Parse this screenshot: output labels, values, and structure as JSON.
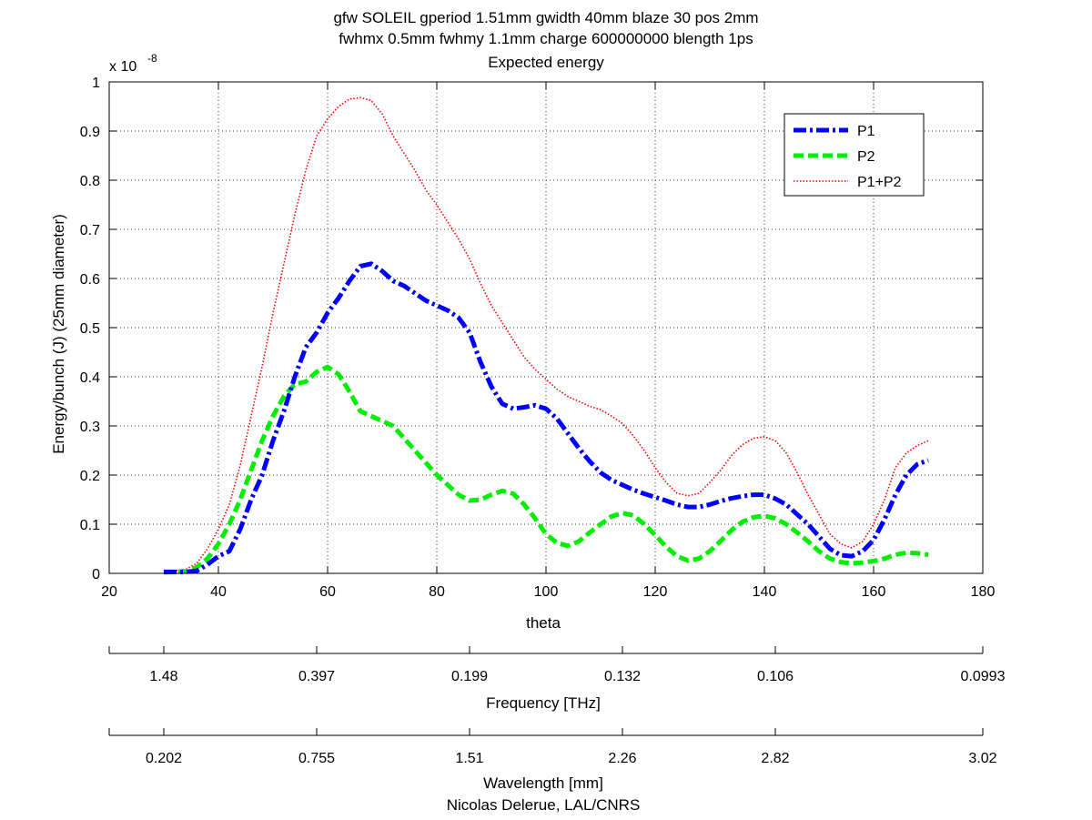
{
  "chart_data": {
    "type": "line",
    "title_lines": [
      "gfw SOLEIL gperiod 1.51mm gwidth 40mm blaze 30 pos 2mm",
      "fwhmx 0.5mm fwhmy 1.1mm charge 600000000 blength 1ps",
      "Expected energy"
    ],
    "xlabel": "theta",
    "ylabel": "Energy/bunch (J) (25mm diameter)",
    "y_multiplier_base": "x 10",
    "y_multiplier_exp": "-8",
    "xlim": [
      20,
      180
    ],
    "ylim": [
      0,
      1
    ],
    "grid": true,
    "legend_position": "top-right",
    "x_ticks": [
      "20",
      "40",
      "60",
      "80",
      "100",
      "120",
      "140",
      "160",
      "180"
    ],
    "y_ticks": [
      "0",
      "0.1",
      "0.2",
      "0.3",
      "0.4",
      "0.5",
      "0.6",
      "0.7",
      "0.8",
      "0.9",
      "1"
    ],
    "series": [
      {
        "name": "P1",
        "color": "#0000ff",
        "style": "dashdot",
        "points": [
          [
            30,
            0.003
          ],
          [
            34,
            0.003
          ],
          [
            36,
            0.005
          ],
          [
            38,
            0.018
          ],
          [
            40,
            0.035
          ],
          [
            42,
            0.045
          ],
          [
            44,
            0.09
          ],
          [
            46,
            0.15
          ],
          [
            48,
            0.2
          ],
          [
            50,
            0.27
          ],
          [
            52,
            0.33
          ],
          [
            54,
            0.4
          ],
          [
            56,
            0.46
          ],
          [
            58,
            0.49
          ],
          [
            60,
            0.53
          ],
          [
            62,
            0.56
          ],
          [
            64,
            0.595
          ],
          [
            66,
            0.625
          ],
          [
            68,
            0.63
          ],
          [
            70,
            0.615
          ],
          [
            72,
            0.595
          ],
          [
            74,
            0.585
          ],
          [
            76,
            0.57
          ],
          [
            78,
            0.555
          ],
          [
            80,
            0.545
          ],
          [
            82,
            0.535
          ],
          [
            84,
            0.52
          ],
          [
            86,
            0.49
          ],
          [
            88,
            0.43
          ],
          [
            90,
            0.38
          ],
          [
            92,
            0.345
          ],
          [
            94,
            0.335
          ],
          [
            96,
            0.338
          ],
          [
            98,
            0.342
          ],
          [
            100,
            0.335
          ],
          [
            102,
            0.315
          ],
          [
            104,
            0.285
          ],
          [
            106,
            0.255
          ],
          [
            108,
            0.228
          ],
          [
            110,
            0.205
          ],
          [
            112,
            0.19
          ],
          [
            114,
            0.18
          ],
          [
            116,
            0.17
          ],
          [
            118,
            0.162
          ],
          [
            120,
            0.155
          ],
          [
            122,
            0.148
          ],
          [
            124,
            0.14
          ],
          [
            126,
            0.135
          ],
          [
            128,
            0.135
          ],
          [
            130,
            0.14
          ],
          [
            132,
            0.147
          ],
          [
            134,
            0.153
          ],
          [
            136,
            0.157
          ],
          [
            138,
            0.16
          ],
          [
            140,
            0.16
          ],
          [
            142,
            0.152
          ],
          [
            144,
            0.14
          ],
          [
            146,
            0.12
          ],
          [
            148,
            0.1
          ],
          [
            150,
            0.075
          ],
          [
            152,
            0.05
          ],
          [
            154,
            0.037
          ],
          [
            156,
            0.035
          ],
          [
            158,
            0.045
          ],
          [
            160,
            0.068
          ],
          [
            162,
            0.11
          ],
          [
            164,
            0.16
          ],
          [
            166,
            0.2
          ],
          [
            168,
            0.222
          ],
          [
            170,
            0.23
          ]
        ]
      },
      {
        "name": "P2",
        "color": "#00ee00",
        "style": "dashed",
        "points": [
          [
            30,
            0.002
          ],
          [
            34,
            0.004
          ],
          [
            36,
            0.012
          ],
          [
            38,
            0.03
          ],
          [
            40,
            0.06
          ],
          [
            42,
            0.1
          ],
          [
            44,
            0.15
          ],
          [
            46,
            0.21
          ],
          [
            48,
            0.27
          ],
          [
            50,
            0.32
          ],
          [
            52,
            0.36
          ],
          [
            54,
            0.385
          ],
          [
            56,
            0.39
          ],
          [
            58,
            0.41
          ],
          [
            60,
            0.42
          ],
          [
            62,
            0.405
          ],
          [
            64,
            0.37
          ],
          [
            66,
            0.33
          ],
          [
            68,
            0.32
          ],
          [
            70,
            0.31
          ],
          [
            72,
            0.3
          ],
          [
            74,
            0.275
          ],
          [
            76,
            0.25
          ],
          [
            78,
            0.225
          ],
          [
            80,
            0.2
          ],
          [
            82,
            0.18
          ],
          [
            84,
            0.16
          ],
          [
            86,
            0.148
          ],
          [
            88,
            0.15
          ],
          [
            90,
            0.16
          ],
          [
            92,
            0.168
          ],
          [
            94,
            0.162
          ],
          [
            96,
            0.14
          ],
          [
            98,
            0.112
          ],
          [
            100,
            0.08
          ],
          [
            102,
            0.062
          ],
          [
            104,
            0.056
          ],
          [
            106,
            0.065
          ],
          [
            108,
            0.083
          ],
          [
            110,
            0.1
          ],
          [
            112,
            0.116
          ],
          [
            114,
            0.123
          ],
          [
            116,
            0.118
          ],
          [
            118,
            0.1
          ],
          [
            120,
            0.078
          ],
          [
            122,
            0.054
          ],
          [
            124,
            0.035
          ],
          [
            126,
            0.026
          ],
          [
            128,
            0.03
          ],
          [
            130,
            0.045
          ],
          [
            132,
            0.066
          ],
          [
            134,
            0.088
          ],
          [
            136,
            0.105
          ],
          [
            138,
            0.114
          ],
          [
            140,
            0.117
          ],
          [
            142,
            0.112
          ],
          [
            144,
            0.1
          ],
          [
            146,
            0.083
          ],
          [
            148,
            0.065
          ],
          [
            150,
            0.045
          ],
          [
            152,
            0.03
          ],
          [
            154,
            0.023
          ],
          [
            156,
            0.02
          ],
          [
            158,
            0.022
          ],
          [
            160,
            0.025
          ],
          [
            162,
            0.03
          ],
          [
            164,
            0.038
          ],
          [
            166,
            0.042
          ],
          [
            168,
            0.041
          ],
          [
            170,
            0.038
          ]
        ]
      },
      {
        "name": "P1+P2",
        "color": "#ff0000",
        "style": "dotted",
        "points": [
          [
            30,
            0.003
          ],
          [
            34,
            0.008
          ],
          [
            36,
            0.02
          ],
          [
            38,
            0.05
          ],
          [
            40,
            0.09
          ],
          [
            42,
            0.14
          ],
          [
            44,
            0.22
          ],
          [
            46,
            0.32
          ],
          [
            48,
            0.42
          ],
          [
            50,
            0.53
          ],
          [
            52,
            0.63
          ],
          [
            54,
            0.73
          ],
          [
            56,
            0.82
          ],
          [
            58,
            0.89
          ],
          [
            60,
            0.925
          ],
          [
            62,
            0.95
          ],
          [
            64,
            0.965
          ],
          [
            66,
            0.968
          ],
          [
            68,
            0.962
          ],
          [
            70,
            0.935
          ],
          [
            72,
            0.89
          ],
          [
            74,
            0.855
          ],
          [
            76,
            0.82
          ],
          [
            78,
            0.78
          ],
          [
            80,
            0.75
          ],
          [
            82,
            0.715
          ],
          [
            84,
            0.68
          ],
          [
            86,
            0.64
          ],
          [
            88,
            0.59
          ],
          [
            90,
            0.545
          ],
          [
            92,
            0.51
          ],
          [
            94,
            0.475
          ],
          [
            96,
            0.44
          ],
          [
            98,
            0.415
          ],
          [
            100,
            0.395
          ],
          [
            102,
            0.375
          ],
          [
            104,
            0.36
          ],
          [
            106,
            0.35
          ],
          [
            108,
            0.34
          ],
          [
            110,
            0.333
          ],
          [
            112,
            0.32
          ],
          [
            114,
            0.305
          ],
          [
            116,
            0.28
          ],
          [
            118,
            0.25
          ],
          [
            120,
            0.215
          ],
          [
            122,
            0.185
          ],
          [
            124,
            0.163
          ],
          [
            126,
            0.158
          ],
          [
            128,
            0.163
          ],
          [
            130,
            0.185
          ],
          [
            132,
            0.21
          ],
          [
            134,
            0.24
          ],
          [
            136,
            0.262
          ],
          [
            138,
            0.275
          ],
          [
            140,
            0.278
          ],
          [
            142,
            0.27
          ],
          [
            144,
            0.245
          ],
          [
            146,
            0.205
          ],
          [
            148,
            0.16
          ],
          [
            150,
            0.12
          ],
          [
            152,
            0.08
          ],
          [
            154,
            0.06
          ],
          [
            156,
            0.052
          ],
          [
            158,
            0.065
          ],
          [
            160,
            0.1
          ],
          [
            162,
            0.15
          ],
          [
            164,
            0.215
          ],
          [
            166,
            0.245
          ],
          [
            168,
            0.26
          ],
          [
            170,
            0.27
          ]
        ]
      }
    ],
    "secondary_axes": [
      {
        "label": "Frequency [THz]",
        "ticks": [
          "1.48",
          "0.397",
          "0.199",
          "0.132",
          "0.106",
          "0.0993"
        ]
      },
      {
        "label": "Wavelength [mm]",
        "ticks": [
          "0.202",
          "0.755",
          "1.51",
          "2.26",
          "2.82",
          "3.02"
        ]
      }
    ],
    "credit": "Nicolas Delerue, LAL/CNRS"
  }
}
